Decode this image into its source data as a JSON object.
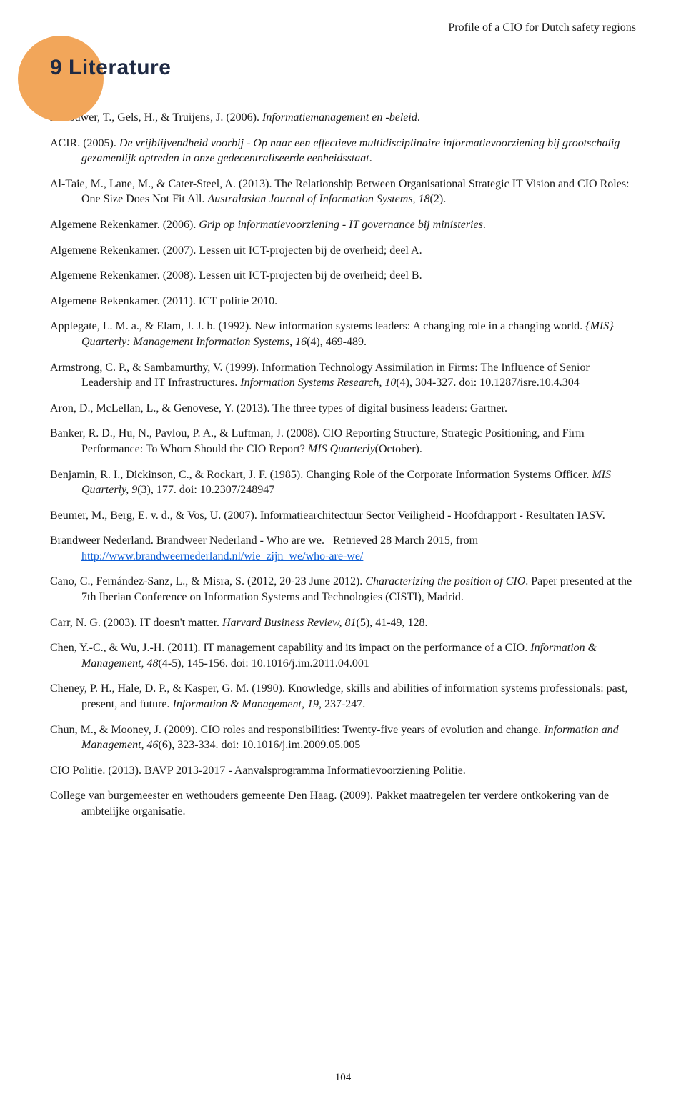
{
  "colors": {
    "bullet_bg": "#f2a65a",
    "heading_color": "#1f2a44",
    "body_color": "#1a1a1a",
    "link_color": "#0b5cd6",
    "page_bg": "#ffffff"
  },
  "typography": {
    "body_family": "Georgia, 'Times New Roman', serif",
    "heading_family": "'Segoe UI', Arial, sans-serif",
    "body_size_pt": 12,
    "heading_size_pt": 22,
    "running_head_size_pt": 12
  },
  "running_head": "Profile of a CIO for Dutch safety regions",
  "heading": "9 Literature",
  "page_number": "104",
  "references": [
    {
      "html": "Abcouwer, T., Gels, H., & Truijens, J. (2006). <span class='ital'>Informatiemanagement en -beleid</span>."
    },
    {
      "html": "ACIR. (2005). <span class='ital'>De vrijblijvendheid voorbij - Op naar een effectieve multidisciplinaire informatievoorziening bij grootschalig gezamenlijk optreden in onze gedecentraliseerde eenheidsstaat</span>."
    },
    {
      "html": "Al-Taie, M., Lane, M., & Cater-Steel, A. (2013). The Relationship Between Organisational Strategic IT Vision and CIO Roles: One Size Does Not Fit All. <span class='ital'>Australasian Journal of Information Systems, 18</span>(2)."
    },
    {
      "html": "Algemene Rekenkamer. (2006). <span class='ital'>Grip op informatievoorziening - IT governance bij ministeries</span>."
    },
    {
      "html": "Algemene Rekenkamer. (2007). Lessen uit ICT-projecten bij de overheid; deel A."
    },
    {
      "html": "Algemene Rekenkamer. (2008). Lessen uit ICT-projecten bij de overheid; deel B."
    },
    {
      "html": "Algemene Rekenkamer. (2011). ICT politie 2010."
    },
    {
      "html": "Applegate, L. M. a., & Elam, J. J. b. (1992). New information systems leaders: A changing role in a changing world. <span class='ital'>{MIS} Quarterly: Management Information Systems, 16</span>(4), 469-489."
    },
    {
      "html": "Armstrong, C. P., & Sambamurthy, V. (1999). Information Technology Assimilation in Firms: The Influence of Senior Leadership and IT Infrastructures. <span class='ital'>Information Systems Research, 10</span>(4), 304-327. doi: 10.1287/isre.10.4.304"
    },
    {
      "html": "Aron, D., McLellan, L., & Genovese, Y. (2013). The three types of digital business leaders: Gartner."
    },
    {
      "html": "Banker, R. D., Hu, N., Pavlou, P. A., & Luftman, J. (2008). CIO Reporting Structure, Strategic Positioning, and Firm Performance: To Whom Should the CIO Report? <span class='ital'>MIS Quarterly</span>(October)."
    },
    {
      "html": "Benjamin, R. I., Dickinson, C., & Rockart, J. F. (1985). Changing Role of the Corporate Information Systems Officer. <span class='ital'>MIS Quarterly, 9</span>(3), 177. doi: 10.2307/248947"
    },
    {
      "html": "Beumer, M., Berg, E. v. d., & Vos, U. (2007). Informatiearchitectuur Sector Veiligheid - Hoofdrapport - Resultaten IASV."
    },
    {
      "html": "Brandweer Nederland. Brandweer Nederland - Who are we.&nbsp;&nbsp; Retrieved 28 March 2015, from <a class='link' data-name='ref-link' data-interactable='true'>http://www.brandweernederland.nl/wie_zijn_we/who-are-we/</a>"
    },
    {
      "html": "Cano, C., Fernández-Sanz, L., & Misra, S. (2012, 20-23 June 2012). <span class='ital'>Characterizing the position of CIO</span>. Paper presented at the 7th Iberian Conference on Information Systems and Technologies (CISTI), Madrid."
    },
    {
      "html": "Carr, N. G. (2003). IT doesn't matter. <span class='ital'>Harvard Business Review, 81</span>(5), 41-49, 128."
    },
    {
      "html": "Chen, Y.-C., & Wu, J.-H. (2011). IT management capability and its impact on the performance of a CIO. <span class='ital'>Information & Management, 48</span>(4-5), 145-156. doi: 10.1016/j.im.2011.04.001"
    },
    {
      "html": "Cheney, P. H., Hale, D. P., & Kasper, G. M. (1990). Knowledge, skills and abilities of information systems professionals: past, present, and future. <span class='ital'>Information & Management, 19</span>, 237-247."
    },
    {
      "html": "Chun, M., & Mooney, J. (2009). CIO roles and responsibilities: Twenty-five years of evolution and change. <span class='ital'>Information and Management, 46</span>(6), 323-334. doi: 10.1016/j.im.2009.05.005"
    },
    {
      "html": "CIO Politie. (2013). BAVP 2013-2017 - Aanvalsprogramma Informatievoorziening Politie."
    },
    {
      "html": "College van burgemeester en wethouders gemeente Den Haag. (2009). Pakket maatregelen ter verdere ontkokering van de ambtelijke organisatie."
    }
  ]
}
